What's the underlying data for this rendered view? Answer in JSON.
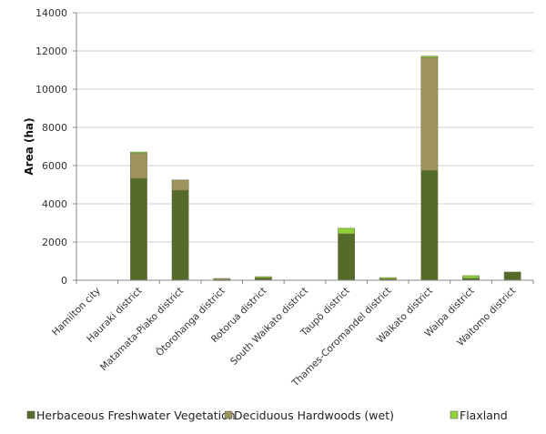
{
  "chart_data": {
    "type": "stacked-bar",
    "title": "",
    "xlabel": "",
    "ylabel": "Area (ha)",
    "ylim": [
      0,
      14000
    ],
    "yticks": [
      0,
      2000,
      4000,
      6000,
      8000,
      10000,
      12000,
      14000
    ],
    "grid": true,
    "legend_position": "bottom",
    "categories": [
      "Hamilton city",
      "Hauraki district",
      "Matamata-Piako district",
      "Ōtorohanga district",
      "Rotorua district",
      "South Waikato district",
      "Taupō district",
      "Thames-Coromandel district",
      "Waikato district",
      "Waipa district",
      "Waitomo district"
    ],
    "series": [
      {
        "name": "Herbaceous Freshwater Vegetation",
        "color": "#556b2a",
        "values": [
          0,
          5330,
          4710,
          50,
          150,
          0,
          2430,
          120,
          5740,
          100,
          430
        ]
      },
      {
        "name": "Deciduous Hardwoods (wet)",
        "color": "#9e935c",
        "values": [
          0,
          1350,
          540,
          45,
          0,
          0,
          0,
          0,
          5950,
          0,
          0
        ]
      },
      {
        "name": "Flaxland",
        "color": "#8ed23a",
        "values": [
          0,
          30,
          0,
          0,
          40,
          0,
          290,
          20,
          40,
          140,
          0
        ]
      }
    ]
  }
}
